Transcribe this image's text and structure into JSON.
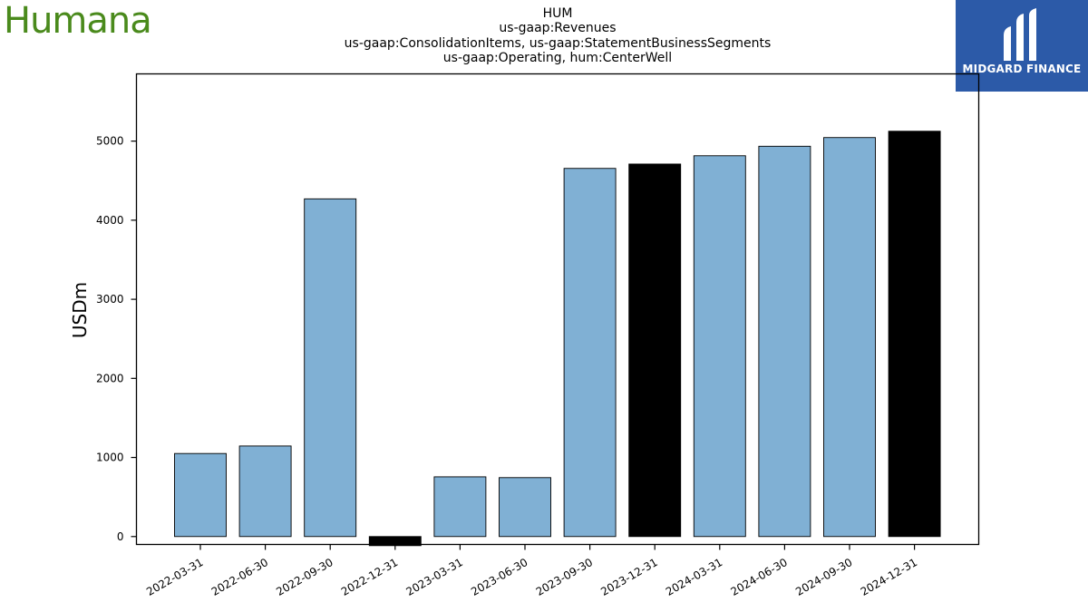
{
  "logo_text": "Humana",
  "brand": {
    "name": "MIDGARD FINANCE",
    "color": "#2c5aa8"
  },
  "title_lines": [
    "HUM",
    "us-gaap:Revenues",
    "us-gaap:ConsolidationItems, us-gaap:StatementBusinessSegments",
    "us-gaap:Operating, hum:CenterWell"
  ],
  "chart_data": {
    "type": "bar",
    "title": "HUM us-gaap:Revenues us-gaap:ConsolidationItems, us-gaap:StatementBusinessSegments us-gaap:Operating, hum:CenterWell",
    "xlabel": "",
    "ylabel": "USDm",
    "ylim": [
      -100,
      5850
    ],
    "yticks": [
      0,
      1000,
      2000,
      3000,
      4000,
      5000
    ],
    "grid": false,
    "categories": [
      "2022-03-31",
      "2022-06-30",
      "2022-09-30",
      "2022-12-31",
      "2023-03-31",
      "2023-06-30",
      "2023-09-30",
      "2023-12-31",
      "2024-03-31",
      "2024-06-30",
      "2024-09-30",
      "2024-12-31"
    ],
    "values": [
      1050,
      1145,
      4270,
      -115,
      755,
      745,
      4655,
      4710,
      4815,
      4935,
      5045,
      5125
    ],
    "bar_colors": [
      "#80b0d4",
      "#80b0d4",
      "#80b0d4",
      "#000000",
      "#80b0d4",
      "#80b0d4",
      "#80b0d4",
      "#000000",
      "#80b0d4",
      "#80b0d4",
      "#80b0d4",
      "#000000"
    ]
  }
}
